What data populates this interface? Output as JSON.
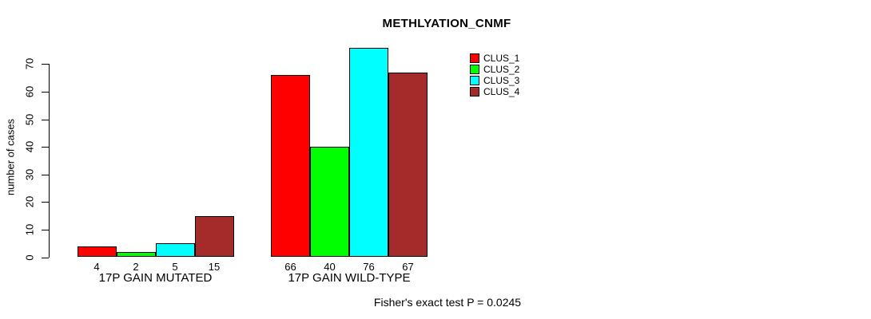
{
  "chart_data": {
    "type": "bar",
    "title": "METHLYATION_CNMF",
    "ylabel": "number of cases",
    "ylim": [
      0,
      70
    ],
    "yticks": [
      0,
      10,
      20,
      30,
      40,
      50,
      60,
      70
    ],
    "grid": false,
    "legend_position": "right",
    "categories": [
      "17P GAIN MUTATED",
      "17P GAIN WILD-TYPE"
    ],
    "series": [
      {
        "name": "CLUS_1",
        "color": "#ff0000",
        "values": [
          4,
          66
        ]
      },
      {
        "name": "CLUS_2",
        "color": "#00ff00",
        "values": [
          2,
          40
        ]
      },
      {
        "name": "CLUS_3",
        "color": "#00ffff",
        "values": [
          5,
          76
        ]
      },
      {
        "name": "CLUS_4",
        "color": "#a52a2a",
        "values": [
          15,
          67
        ]
      }
    ],
    "bar_value_labels": [
      [
        4,
        2,
        5,
        15
      ],
      [
        66,
        40,
        76,
        67
      ]
    ],
    "annotation": "Fisher's exact test P = 0.0245"
  }
}
